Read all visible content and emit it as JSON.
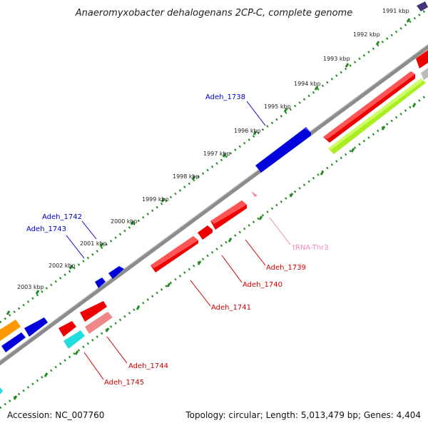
{
  "title": "Anaeromyxobacter dehalogenans 2CP-C, complete genome",
  "footer": {
    "accession": "Accession: NC_007760",
    "summary": "Topology: circular; Length: 5,013,479 bp; Genes: 4,404"
  },
  "kbp_labels": [
    "1991 kbp",
    "1992 kbp",
    "1993 kbp",
    "1994 kbp",
    "1995 kbp",
    "1996 kbp",
    "1997 kbp",
    "1998 kbp",
    "1999 kbp",
    "2000 kbp",
    "2001 kbp",
    "2002 kbp",
    "2003 kbp"
  ],
  "gene_labels": {
    "adeh_1738": "Adeh_1738",
    "adeh_1742": "Adeh_1742",
    "adeh_1743": "Adeh_1743",
    "trna_thr3": "tRNA-Thr3",
    "adeh_1739": "Adeh_1739",
    "adeh_1740": "Adeh_1740",
    "adeh_1741": "Adeh_1741",
    "adeh_1744": "Adeh_1744",
    "adeh_1745": "Adeh_1745"
  },
  "colors": {
    "backbone": "#8c8c8c",
    "ruler": "#228b22",
    "forward_gene": "#0000dd",
    "reverse_gene": "#ee0000",
    "trna": "#ee88bb",
    "pseudo": "#ee8888",
    "lime": "#aaee22",
    "cyan": "#22dddd",
    "orange": "#ff9900",
    "label_blue": "#0000cc",
    "label_red": "#cc0000"
  }
}
